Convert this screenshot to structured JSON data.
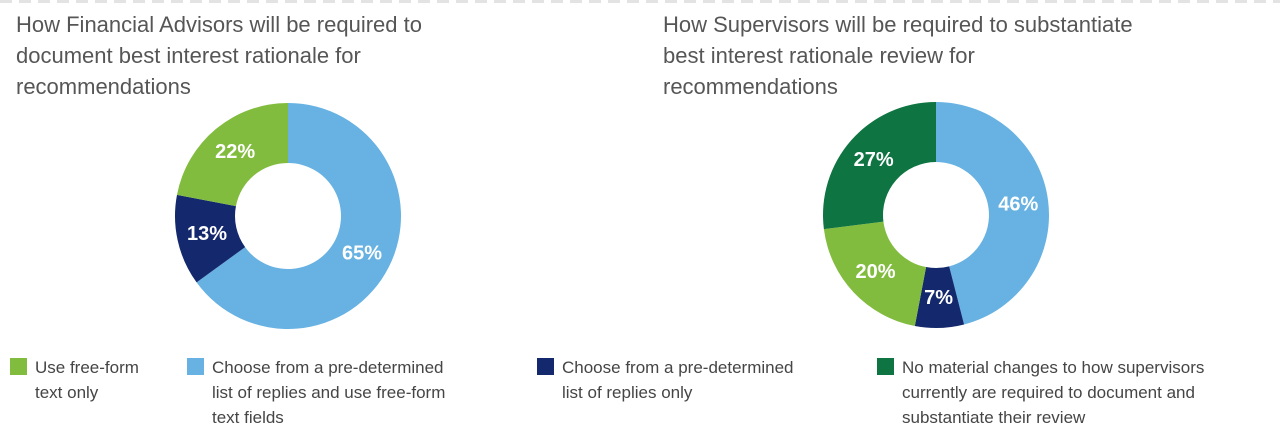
{
  "palette": {
    "light_green": "#82BC3E",
    "light_blue": "#67B2E2",
    "navy": "#14296D",
    "dark_green": "#0E7442"
  },
  "chart_data": [
    {
      "type": "donut",
      "title": "How Financial Advisors will be required to document best interest rationale for recommendations",
      "title_lines": [
        "How Financial Advisors will be required to",
        "document best interest rationale for",
        "recommendations"
      ],
      "start_angle_deg": 0,
      "direction": "clockwise",
      "slices": [
        {
          "category": "Choose from a pre-determined list of replies and use free-form text fields",
          "value": 65,
          "data_label": "65%",
          "color": "light_blue"
        },
        {
          "category": "Choose from a pre-determined list of replies only",
          "value": 13,
          "data_label": "13%",
          "color": "navy"
        },
        {
          "category": "Use free-form text only",
          "value": 22,
          "data_label": "22%",
          "color": "light_green"
        }
      ]
    },
    {
      "type": "donut",
      "title": "How Supervisors will be required to substantiate best interest rationale review for recommendations",
      "title_lines": [
        "How Supervisors will be required to substantiate",
        "best interest rationale review for",
        "recommendations"
      ],
      "start_angle_deg": 0,
      "direction": "clockwise",
      "slices": [
        {
          "category": "Choose from a pre-determined list of replies and use free-form text fields",
          "value": 46,
          "data_label": "46%",
          "color": "light_blue"
        },
        {
          "category": "Choose from a pre-determined list of replies only",
          "value": 7,
          "data_label": "7%",
          "color": "navy"
        },
        {
          "category": "Use free-form text only",
          "value": 20,
          "data_label": "20%",
          "color": "light_green"
        },
        {
          "category": "No material changes to how supervisors currently are required to document and substantiate their review",
          "value": 27,
          "data_label": "27%",
          "color": "dark_green"
        }
      ]
    }
  ],
  "legend": {
    "items": [
      {
        "color": "light_green",
        "label": "Use free-form text only",
        "label_lines": [
          "Use free-form",
          "text only"
        ]
      },
      {
        "color": "light_blue",
        "label": "Choose from a pre-determined list of replies and use free-form text fields",
        "label_lines": [
          "Choose from a pre-determined",
          "list of replies and use free-form",
          "text fields"
        ]
      },
      {
        "color": "navy",
        "label": "Choose from a pre-determined list of replies only",
        "label_lines": [
          "Choose from a pre-determined",
          "list of replies only"
        ]
      },
      {
        "color": "dark_green",
        "label": "No material changes to how supervisors currently are required to document and substantiate their review",
        "label_lines": [
          "No material changes to how supervisors",
          "currently are required to document and",
          "substantiate their review"
        ]
      }
    ]
  }
}
